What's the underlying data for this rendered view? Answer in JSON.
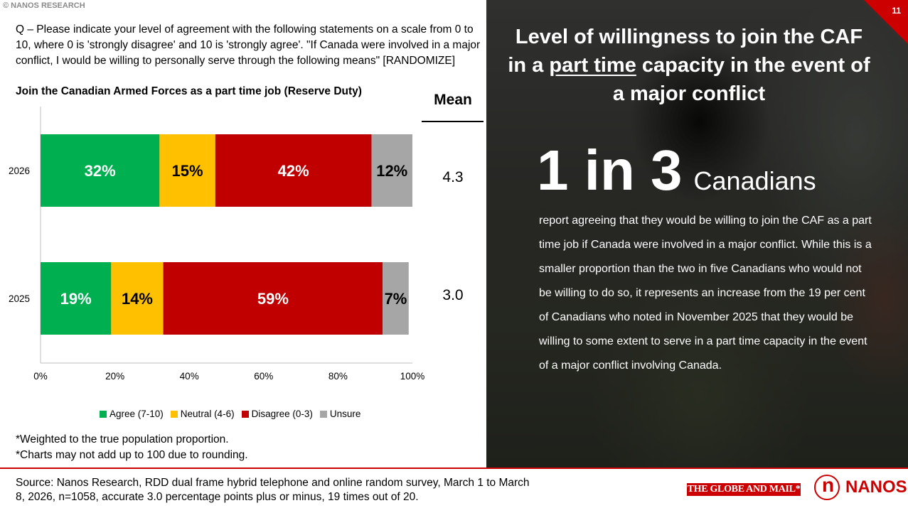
{
  "copyright": "© NANOS RESEARCH",
  "question": "Q – Please indicate your level of agreement with the following statements on a scale from 0 to 10, where 0 is 'strongly disagree' and 10 is 'strongly agree'. \"If Canada were involved in a major conflict, I would be willing to personally serve through the following means\" [RANDOMIZE]",
  "chart_subtitle": "Join the Canadian Armed Forces as a part time job (Reserve Duty)",
  "mean_header": "Mean",
  "means": [
    "4.3",
    "3.0"
  ],
  "chart_data": {
    "type": "bar",
    "orientation": "horizontal",
    "stacked": true,
    "percent_stacked": true,
    "title": "Join the Canadian Armed Forces as a part time job (Reserve Duty)",
    "categories": [
      "2026",
      "2025"
    ],
    "series": [
      {
        "name": "Agree (7-10)",
        "values": [
          32,
          19
        ],
        "labels": [
          "32%",
          "19%"
        ],
        "color": "#00b050",
        "label_color": "#ffffff"
      },
      {
        "name": "Neutral (4-6)",
        "values": [
          15,
          14
        ],
        "labels": [
          "15%",
          "14%"
        ],
        "color": "#ffc000",
        "label_color": "#000000"
      },
      {
        "name": "Disagree (0-3)",
        "values": [
          42,
          59
        ],
        "labels": [
          "42%",
          "59%"
        ],
        "color": "#c00000",
        "label_color": "#ffffff"
      },
      {
        "name": "Unsure",
        "values": [
          12,
          7
        ],
        "labels": [
          "12%",
          "7%"
        ],
        "color": "#a6a6a6",
        "label_color": "#000000"
      }
    ],
    "xlim": [
      0,
      100
    ],
    "x_ticks": [
      "0%",
      "20%",
      "40%",
      "60%",
      "80%",
      "100%"
    ],
    "legend": "bottom",
    "grid": false
  },
  "footnotes": [
    "*Weighted to the true population proportion.",
    "*Charts may not add up to 100 due to rounding."
  ],
  "panel": {
    "page_number": "11",
    "headline_pre": "Level of willingness to join the CAF in a ",
    "headline_underlined": "part time",
    "headline_post": " capacity in the event of a major conflict",
    "big_number": "1 in 3",
    "big_unit": "Canadians",
    "body": "report agreeing that they would be willing to join the CAF as a part time job if Canada were involved in a major conflict. While this is a smaller proportion than the two in five Canadians who would not be willing to do so, it represents an increase from the 19 per cent of Canadians who noted in November 2025 that they would be willing to some extent to serve in a part time capacity in the event of a major conflict involving Canada."
  },
  "source": "Source: Nanos Research, RDD dual frame hybrid telephone and online random survey, March 1 to March 8, 2026, n=1058, accurate 3.0 percentage points plus or minus, 19 times out of 20.",
  "logos": {
    "globe": "THE GLOBE AND MAIL*",
    "nanos": "NANOS"
  }
}
